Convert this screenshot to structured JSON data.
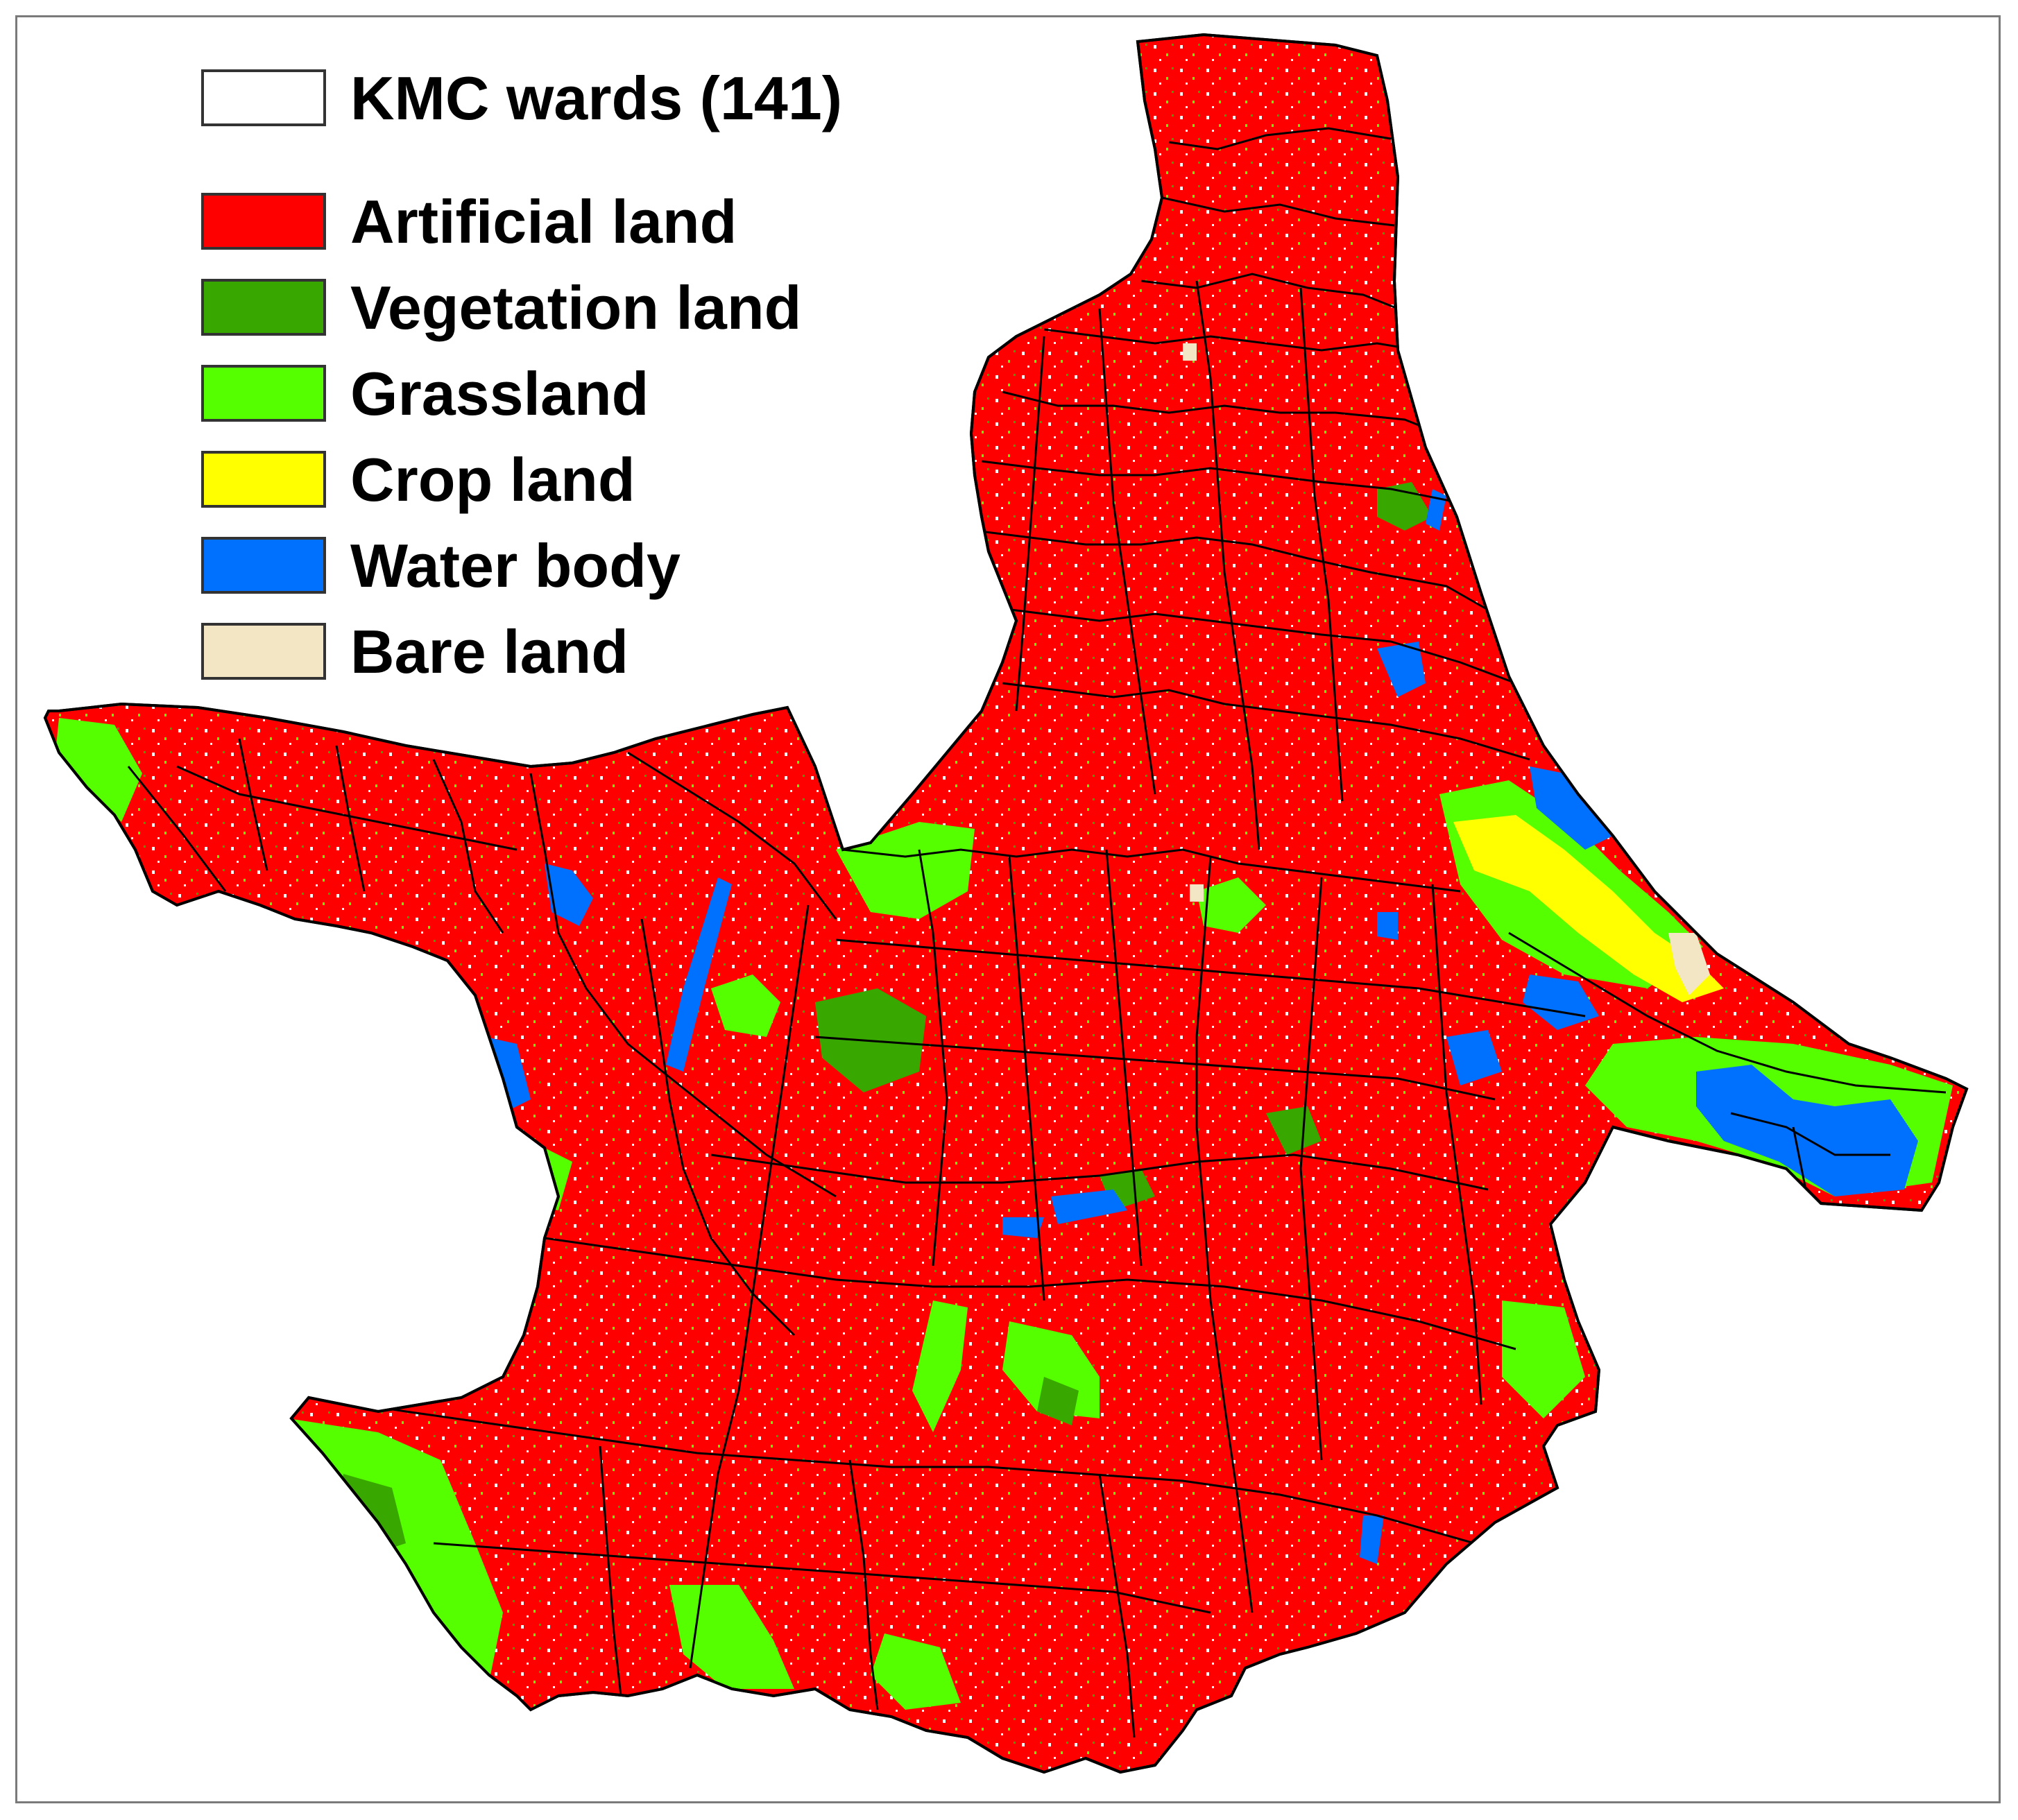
{
  "legend": {
    "items": [
      {
        "label": "KMC wards (141)",
        "color": "#ffffff"
      },
      {
        "label": "Artificial land",
        "color": "#ff0000"
      },
      {
        "label": "Vegetation land",
        "color": "#38a800"
      },
      {
        "label": "Grassland",
        "color": "#55ff00"
      },
      {
        "label": "Crop land",
        "color": "#ffff00"
      },
      {
        "label": "Water body",
        "color": "#0070ff"
      },
      {
        "label": "Bare land",
        "color": "#f2e6c4"
      }
    ]
  },
  "colors": {
    "artificial": "#ff0000",
    "vegetation": "#38a800",
    "grassland": "#55ff00",
    "cropland": "#ffff00",
    "water": "#0070ff",
    "bare": "#f2e6c4",
    "ward_boundary": "#000000",
    "frame": "#7a7a7a"
  }
}
